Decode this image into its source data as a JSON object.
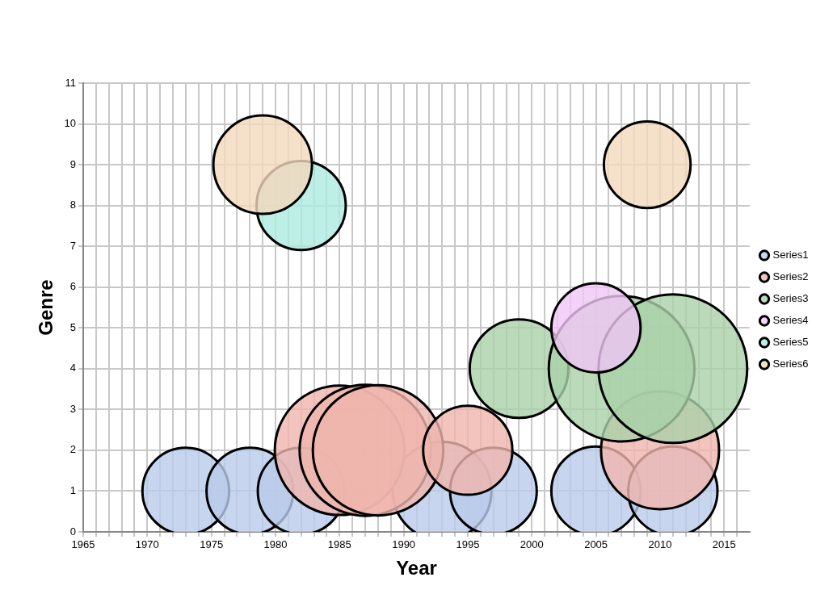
{
  "chart_data": {
    "type": "bubble",
    "xlabel": "Year",
    "ylabel": "Genre",
    "xlim": [
      1965,
      2017
    ],
    "xticks": [
      1965,
      {
        "value": 1966,
        "label": null
      },
      {
        "value": 1967,
        "label": null
      },
      {
        "value": 1968,
        "label": null
      },
      {
        "value": 1969,
        "label": null
      },
      1970,
      {
        "value": 1971,
        "label": null
      },
      {
        "value": 1972,
        "label": null
      },
      {
        "value": 1973,
        "label": null
      },
      {
        "value": 1974,
        "label": null
      },
      1975,
      {
        "value": 1976,
        "label": null
      },
      {
        "value": 1977,
        "label": null
      },
      {
        "value": 1978,
        "label": null
      },
      {
        "value": 1979,
        "label": null
      },
      1980,
      {
        "value": 1981,
        "label": null
      },
      {
        "value": 1982,
        "label": null
      },
      {
        "value": 1983,
        "label": null
      },
      {
        "value": 1984,
        "label": null
      },
      1985,
      {
        "value": 1986,
        "label": null
      },
      {
        "value": 1987,
        "label": null
      },
      {
        "value": 1988,
        "label": null
      },
      {
        "value": 1989,
        "label": null
      },
      1990,
      {
        "value": 1991,
        "label": null
      },
      {
        "value": 1992,
        "label": null
      },
      {
        "value": 1993,
        "label": null
      },
      {
        "value": 1994,
        "label": null
      },
      1995,
      {
        "value": 1996,
        "label": null
      },
      {
        "value": 1997,
        "label": null
      },
      {
        "value": 1998,
        "label": null
      },
      {
        "value": 1999,
        "label": null
      },
      2000,
      {
        "value": 2001,
        "label": null
      },
      {
        "value": 2002,
        "label": null
      },
      {
        "value": 2003,
        "label": null
      },
      {
        "value": 2004,
        "label": null
      },
      2005,
      {
        "value": 2006,
        "label": null
      },
      {
        "value": 2007,
        "label": null
      },
      {
        "value": 2008,
        "label": null
      },
      {
        "value": 2009,
        "label": null
      },
      2010,
      {
        "value": 2011,
        "label": null
      },
      {
        "value": 2012,
        "label": null
      },
      {
        "value": 2013,
        "label": null
      },
      {
        "value": 2014,
        "label": null
      },
      2015,
      {
        "value": 2016,
        "label": null
      }
    ],
    "ylim": [
      0,
      11
    ],
    "yticks": [
      0,
      1,
      2,
      3,
      4,
      5,
      6,
      7,
      8,
      9,
      10,
      11
    ],
    "grid": true,
    "legend": "right",
    "marker": "circle",
    "series": [
      {
        "name": "Series1",
        "color": "#b9cbeb",
        "x": [
          1973,
          1978,
          1982,
          1993,
          1997,
          2005,
          2011
        ],
        "values": [
          1,
          1,
          1,
          1,
          1,
          1,
          1
        ],
        "sizes": [
          0.34,
          0.34,
          0.34,
          0.44,
          0.34,
          0.36,
          0.36
        ]
      },
      {
        "name": "Series2",
        "color": "#efb5ac",
        "x": [
          1985,
          1987,
          1988,
          1995,
          2010
        ],
        "values": [
          2,
          2,
          2,
          2,
          2
        ],
        "sizes": [
          0.76,
          0.78,
          0.77,
          0.36,
          0.63
        ]
      },
      {
        "name": "Series3",
        "color": "#a9d1a9",
        "x": [
          1999,
          2007,
          2011
        ],
        "values": [
          4,
          4,
          4
        ],
        "sizes": [
          0.44,
          0.96,
          1
        ]
      },
      {
        "name": "Series4",
        "color": "#f0c6f6",
        "x": [
          2005
        ],
        "values": [
          5
        ],
        "sizes": [
          0.36
        ]
      },
      {
        "name": "Series5",
        "color": "#aeebe1",
        "x": [
          1982
        ],
        "values": [
          8
        ],
        "sizes": [
          0.36
        ]
      },
      {
        "name": "Series6",
        "color": "#f3d8bb",
        "x": [
          1979,
          2009
        ],
        "values": [
          9,
          9
        ],
        "sizes": [
          0.44,
          0.34
        ]
      }
    ]
  }
}
